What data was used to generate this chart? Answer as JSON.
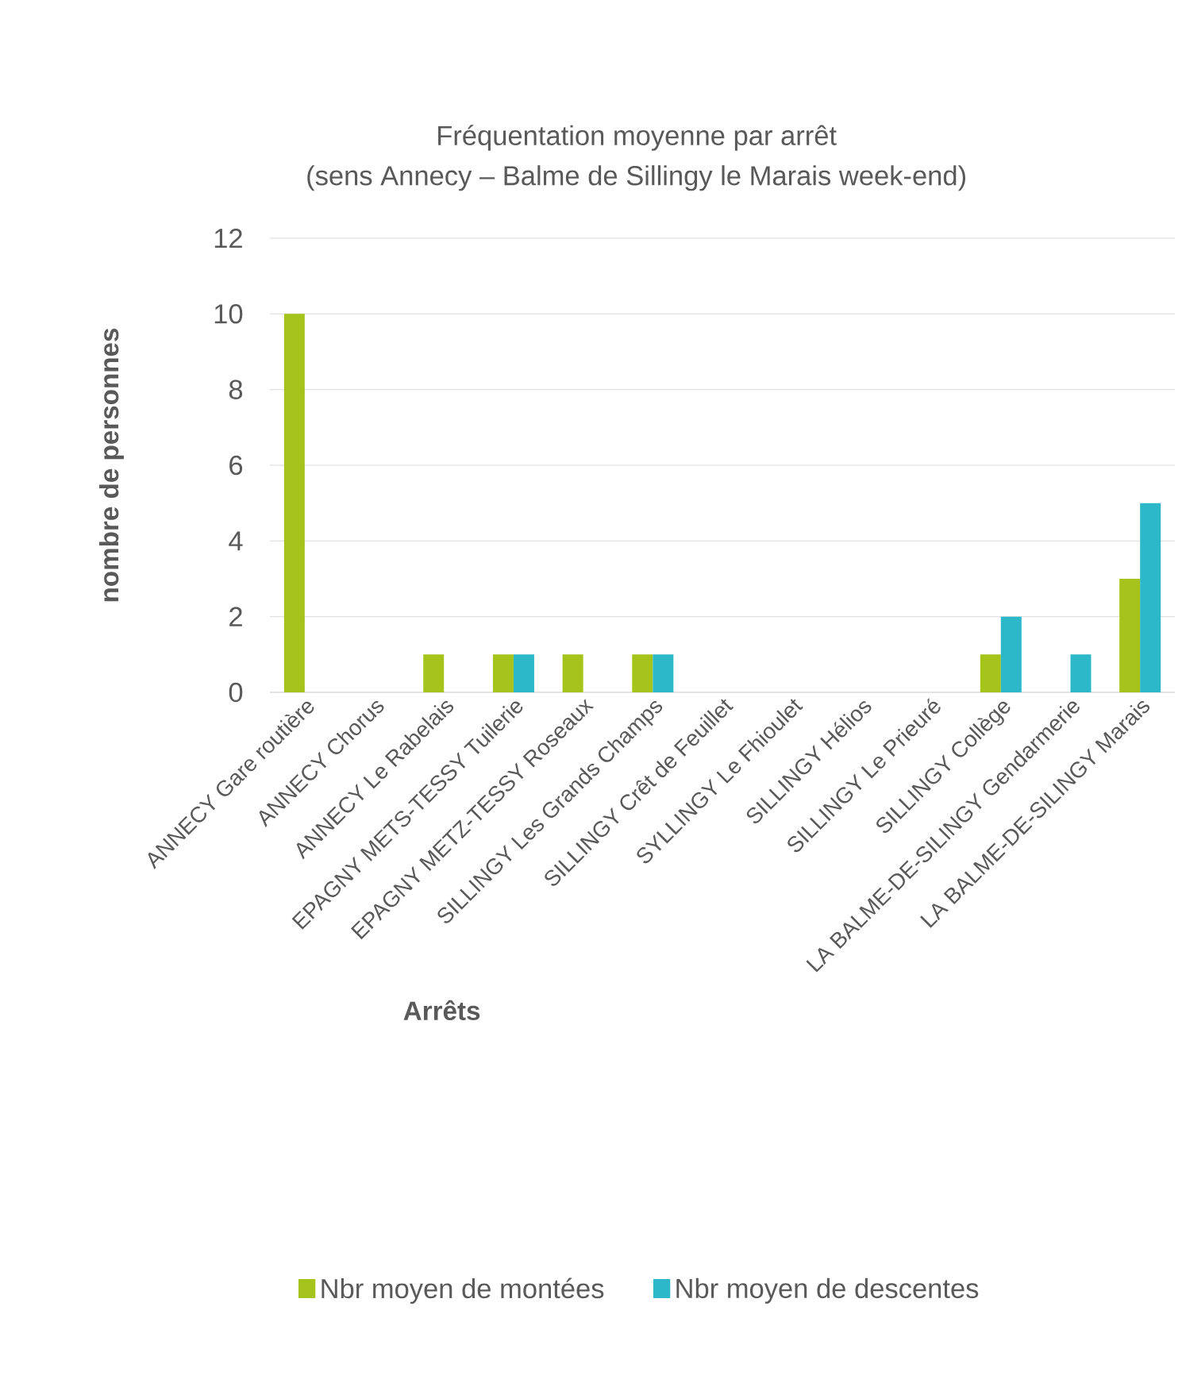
{
  "chart_data": {
    "type": "bar",
    "title": "Fréquentation moyenne par arrêt",
    "subtitle": "(sens Annecy – Balme de Sillingy le Marais week-end)",
    "xlabel": "Arrêts",
    "ylabel": "nombre de personnes",
    "categories": [
      "ANNECY Gare routière",
      "ANNECY Chorus",
      "ANNECY Le Rabelais",
      "EPAGNY METS-TESSY Tuilerie",
      "EPAGNY METZ-TESSY Roseaux",
      "SILLINGY Les Grands Champs",
      "SILLINGY Crêt de Feuillet",
      "SYLLINGY Le Fhioulet",
      "SILLINGY Hélios",
      "SILLINGY Le Prieuré",
      "SILLINGY Collège",
      "LA BALME-DE-SILINGY Gendarmerie",
      "LA BALME-DE-SILINGY Marais"
    ],
    "series": [
      {
        "name": "Nbr moyen de montées",
        "color": "#a5c31b",
        "values": [
          10,
          0,
          1,
          1,
          1,
          1,
          0,
          0,
          0,
          0,
          1,
          0,
          3
        ]
      },
      {
        "name": "Nbr moyen de descentes",
        "color": "#2cb8c9",
        "values": [
          0,
          0,
          0,
          1,
          0,
          1,
          0,
          0,
          0,
          0,
          2,
          1,
          5
        ]
      }
    ],
    "ylim": [
      0,
      12
    ],
    "yticks": [
      0,
      2,
      4,
      6,
      8,
      10,
      12
    ],
    "grid": "y",
    "legend": "bottom"
  }
}
